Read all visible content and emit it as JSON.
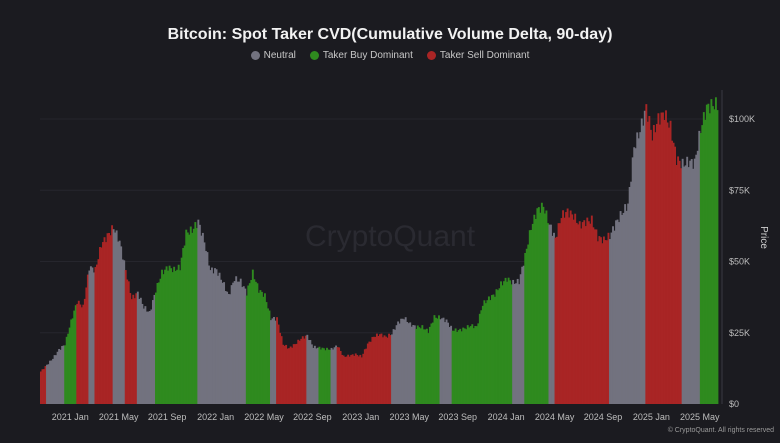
{
  "chart_data": {
    "type": "bar",
    "title": "Bitcoin: Spot Taker CVD(Cumulative Volume Delta, 90-day)",
    "ylabel": "Price",
    "xlabel": "",
    "ylim": [
      0,
      115000
    ],
    "legend_position": "top-center",
    "legend": [
      {
        "key": "N",
        "label": "Neutral",
        "color": "#72727f"
      },
      {
        "key": "B",
        "label": "Taker Buy Dominant",
        "color": "#2f8a1f"
      },
      {
        "key": "S",
        "label": "Taker Sell Dominant",
        "color": "#a92525"
      }
    ],
    "x_tick_labels": [
      "2021 Jan",
      "2021 May",
      "2021 Sep",
      "2022 Jan",
      "2022 May",
      "2022 Sep",
      "2023 Jan",
      "2023 May",
      "2023 Sep",
      "2024 Jan",
      "2024 May",
      "2024 Sep",
      "2025 Jan",
      "2025 May"
    ],
    "y_ticks": [
      {
        "value": 0,
        "label": "$0"
      },
      {
        "value": 25000,
        "label": "$25K"
      },
      {
        "value": 50000,
        "label": "$50K"
      },
      {
        "value": 75000,
        "label": "$75K"
      },
      {
        "value": 100000,
        "label": "$100K"
      }
    ],
    "price_k": [
      11.4,
      13.7,
      16,
      19,
      21,
      29,
      36,
      34,
      48,
      47,
      56,
      59,
      62,
      57,
      47,
      37,
      39,
      34,
      32,
      40,
      46,
      48,
      47,
      48,
      60,
      61,
      64,
      57,
      47,
      47,
      43,
      38,
      44,
      43,
      39,
      46,
      40,
      38,
      30,
      30,
      21,
      19.5,
      21,
      23,
      24,
      20,
      19.7,
      19.3,
      19.2,
      20.5,
      16.6,
      17,
      17.4,
      16.6,
      21,
      23.7,
      24.5,
      23.5,
      24.7,
      28.5,
      30.3,
      28,
      27,
      27,
      25.5,
      30.5,
      30.3,
      29.2,
      26,
      25.8,
      26.5,
      27.5,
      27,
      35,
      37,
      38.5,
      42,
      44,
      42.5,
      43,
      52,
      62,
      68,
      69.5,
      63,
      58,
      66,
      67.5,
      66,
      62.7,
      64,
      64.5,
      58.5,
      57.5,
      59,
      63.5,
      67,
      70,
      90,
      96,
      104,
      94,
      100,
      102,
      97,
      86,
      84,
      85,
      84.5,
      96.5,
      104,
      105
    ],
    "dominance": [
      "S",
      "N",
      "N",
      "N",
      "B",
      "B",
      "S",
      "S",
      "N",
      "S",
      "S",
      "S",
      "N",
      "N",
      "S",
      "S",
      "N",
      "N",
      "N",
      "B",
      "B",
      "B",
      "B",
      "B",
      "B",
      "B",
      "N",
      "N",
      "N",
      "N",
      "N",
      "N",
      "N",
      "N",
      "B",
      "B",
      "B",
      "B",
      "N",
      "S",
      "S",
      "S",
      "S",
      "S",
      "N",
      "N",
      "B",
      "B",
      "N",
      "S",
      "S",
      "S",
      "S",
      "S",
      "S",
      "S",
      "S",
      "S",
      "N",
      "N",
      "N",
      "N",
      "B",
      "B",
      "B",
      "B",
      "N",
      "N",
      "B",
      "B",
      "B",
      "B",
      "B",
      "B",
      "B",
      "B",
      "B",
      "B",
      "N",
      "N",
      "B",
      "B",
      "B",
      "B",
      "N",
      "S",
      "S",
      "S",
      "S",
      "S",
      "S",
      "S",
      "S",
      "S",
      "N",
      "N",
      "N",
      "N",
      "N",
      "N",
      "S",
      "S",
      "S",
      "S",
      "S",
      "S",
      "N",
      "N",
      "N",
      "B",
      "B",
      "B"
    ]
  },
  "watermark": "CryptoQuant",
  "copyright": "© CryptoQuant. All rights reserved"
}
